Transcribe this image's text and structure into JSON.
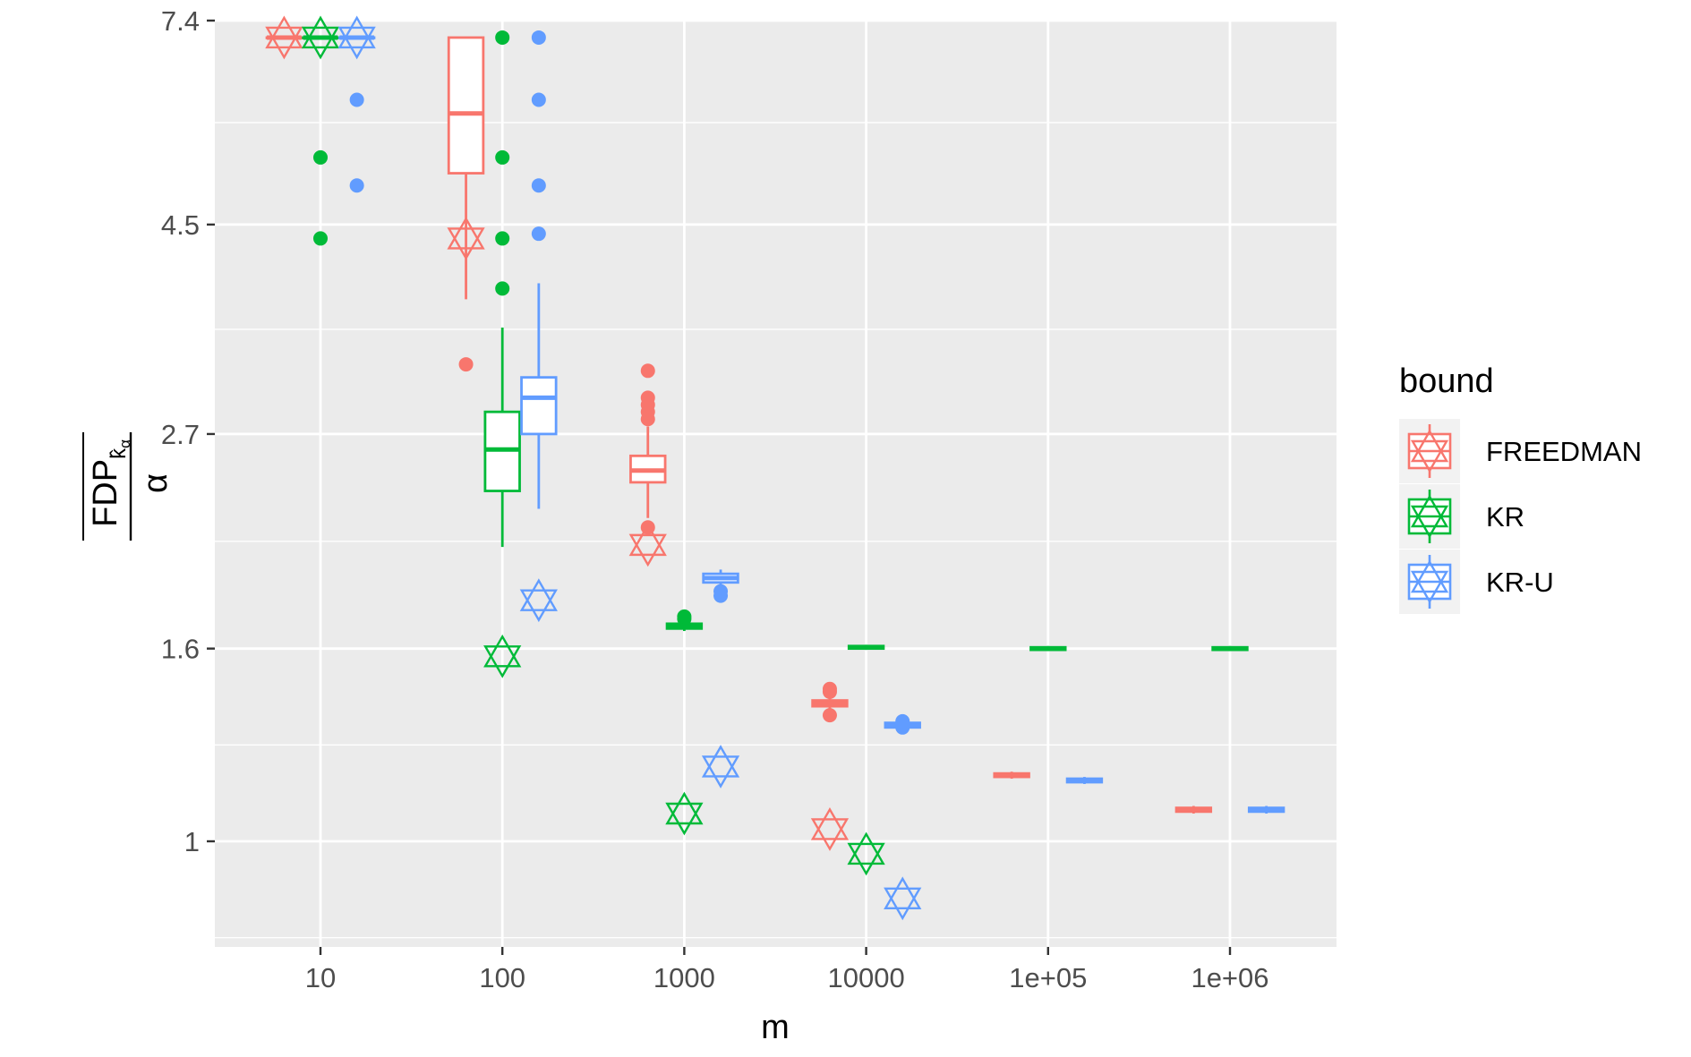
{
  "chart_data": {
    "type": "boxplot",
    "xlabel": "m",
    "ylabel": {
      "numerator": "FDP",
      "subscript": "k̂",
      "subsubscript": "α",
      "denominator": "α"
    },
    "x_scale": "log10",
    "y_scale": "log",
    "ylim": [
      0.8,
      8.0
    ],
    "yticks": [
      1,
      1.6,
      2.7,
      4.5,
      7.4
    ],
    "ytick_labels": [
      "1",
      "1.6",
      "2.7",
      "4.5",
      "7.4"
    ],
    "xticks": [
      10,
      100,
      1000,
      10000,
      100000,
      1000000
    ],
    "xtick_labels": [
      "10",
      "100",
      "1000",
      "10000",
      "1e+05",
      "1e+06"
    ],
    "grid": true,
    "legend": {
      "title": "bound",
      "position": "right",
      "entries": [
        "FREEDMAN",
        "KR",
        "KR-U"
      ]
    },
    "colors": {
      "FREEDMAN": "#F8766D",
      "KR": "#00BA38",
      "KR-U": "#619CFF",
      "panel": "#EBEBEB",
      "grid": "#FFFFFF"
    },
    "series": [
      {
        "name": "FREEDMAN",
        "boxes": [
          {
            "m": 10,
            "q1": 7.1,
            "median": 7.1,
            "q3": 7.1,
            "whisker_low": 7.1,
            "whisker_high": 7.1,
            "outliers": [],
            "marker": 7.1
          },
          {
            "m": 100,
            "q1": 5.1,
            "median": 5.9,
            "q3": 7.1,
            "whisker_low": 3.75,
            "whisker_high": 7.1,
            "outliers": [
              3.2
            ],
            "marker": 4.35
          },
          {
            "m": 1000,
            "q1": 2.4,
            "median": 2.47,
            "q3": 2.56,
            "whisker_low": 2.2,
            "whisker_high": 2.75,
            "outliers": [
              2.8,
              2.85,
              2.9,
              2.95,
              3.15,
              2.15
            ],
            "marker": 2.06
          },
          {
            "m": 10000,
            "q1": 1.39,
            "median": 1.4,
            "q3": 1.41,
            "whisker_low": 1.37,
            "whisker_high": 1.43,
            "outliers": [
              1.36,
              1.44,
              1.45
            ],
            "marker": 1.03
          },
          {
            "m": 100000,
            "q1": 1.17,
            "median": 1.175,
            "q3": 1.18,
            "whisker_low": 1.165,
            "whisker_high": 1.185,
            "outliers": [],
            "marker": null
          },
          {
            "m": 1000000,
            "q1": 1.075,
            "median": 1.08,
            "q3": 1.085,
            "whisker_low": 1.07,
            "whisker_high": 1.09,
            "outliers": [],
            "marker": null
          }
        ]
      },
      {
        "name": "KR",
        "boxes": [
          {
            "m": 10,
            "q1": 7.1,
            "median": 7.1,
            "q3": 7.1,
            "whisker_low": 7.1,
            "whisker_high": 7.1,
            "outliers": [
              5.3,
              4.35
            ],
            "marker": 7.1
          },
          {
            "m": 100,
            "q1": 2.35,
            "median": 2.6,
            "q3": 2.85,
            "whisker_low": 2.05,
            "whisker_high": 3.5,
            "outliers": [
              3.85,
              4.35,
              5.3,
              7.1
            ],
            "marker": 1.57
          },
          {
            "m": 1000,
            "q1": 1.68,
            "median": 1.69,
            "q3": 1.7,
            "whisker_low": 1.67,
            "whisker_high": 1.71,
            "outliers": [
              1.72,
              1.73
            ],
            "marker": 1.07
          },
          {
            "m": 10000,
            "q1": 1.6,
            "median": 1.605,
            "q3": 1.61,
            "whisker_low": 1.595,
            "whisker_high": 1.615,
            "outliers": [],
            "marker": 0.97
          },
          {
            "m": 100000,
            "q1": 1.595,
            "median": 1.6,
            "q3": 1.605,
            "whisker_low": 1.59,
            "whisker_high": 1.61,
            "outliers": [],
            "marker": null
          },
          {
            "m": 1000000,
            "q1": 1.595,
            "median": 1.6,
            "q3": 1.605,
            "whisker_low": 1.59,
            "whisker_high": 1.61,
            "outliers": [],
            "marker": null
          }
        ]
      },
      {
        "name": "KR-U",
        "boxes": [
          {
            "m": 10,
            "q1": 7.1,
            "median": 7.1,
            "q3": 7.1,
            "whisker_low": 7.1,
            "whisker_high": 7.1,
            "outliers": [
              6.1,
              4.95
            ],
            "marker": 7.1
          },
          {
            "m": 100,
            "q1": 2.7,
            "median": 2.95,
            "q3": 3.1,
            "whisker_low": 2.25,
            "whisker_high": 3.9,
            "outliers": [
              4.4,
              4.95,
              6.1,
              7.1
            ],
            "marker": 1.8
          },
          {
            "m": 1000,
            "q1": 1.88,
            "median": 1.9,
            "q3": 1.92,
            "whisker_low": 1.86,
            "whisker_high": 1.94,
            "outliers": [
              1.82,
              1.84
            ],
            "marker": 1.2
          },
          {
            "m": 10000,
            "q1": 1.32,
            "median": 1.33,
            "q3": 1.335,
            "whisker_low": 1.31,
            "whisker_high": 1.34,
            "outliers": [
              1.32,
              1.34
            ],
            "marker": 0.87
          },
          {
            "m": 100000,
            "q1": 1.155,
            "median": 1.16,
            "q3": 1.165,
            "whisker_low": 1.15,
            "whisker_high": 1.17,
            "outliers": [],
            "marker": null
          },
          {
            "m": 1000000,
            "q1": 1.075,
            "median": 1.08,
            "q3": 1.085,
            "whisker_low": 1.07,
            "whisker_high": 1.09,
            "outliers": [],
            "marker": null
          }
        ]
      }
    ]
  }
}
